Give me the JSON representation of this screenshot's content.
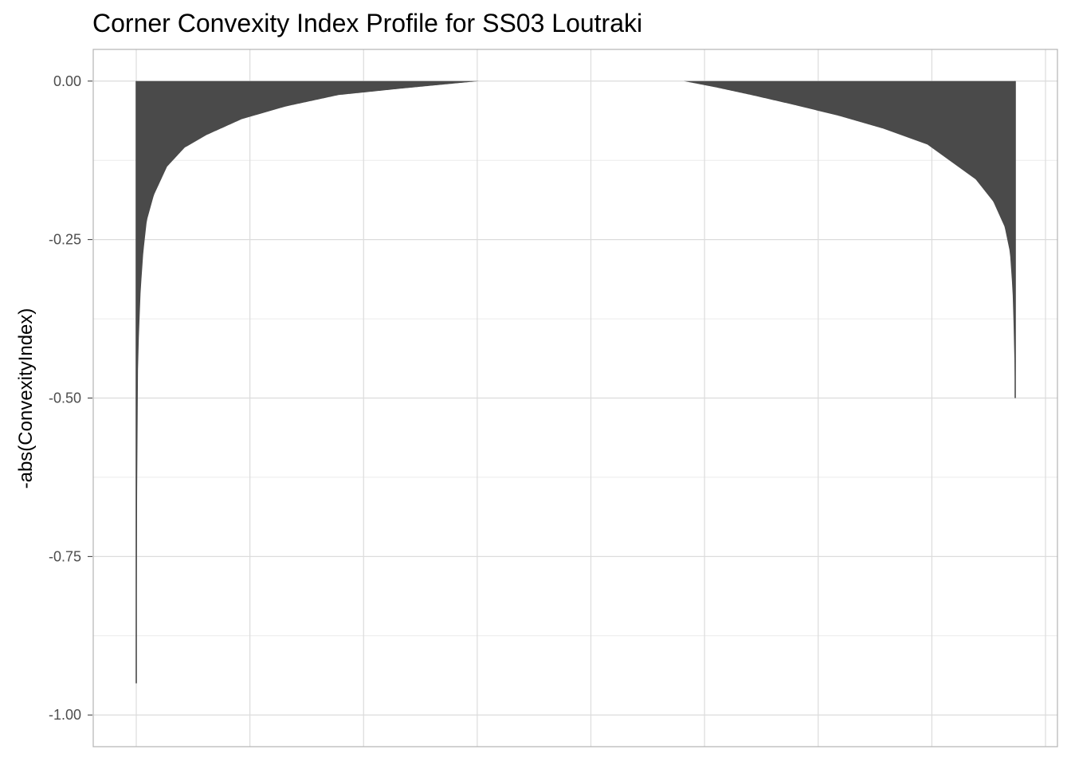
{
  "chart_data": {
    "type": "area",
    "title": "Corner Convexity Index Profile for SS03 Loutraki",
    "xlabel": "",
    "ylabel": "-abs(ConvexityIndex)",
    "ylim": [
      -1.05,
      0.05
    ],
    "y_ticks": [
      0.0,
      -0.25,
      -0.5,
      -0.75,
      -1.0
    ],
    "y_tick_labels": [
      "0.00",
      "-0.25",
      "-0.50",
      "-0.75",
      "-1.00"
    ],
    "x_tick_labels_shown": false,
    "grid": true,
    "legend": "none",
    "colors": {
      "bars": "#4a4a4a",
      "grid_major": "#dcdcdc",
      "grid_minor": "#ebebeb",
      "border": "#b3b3b3"
    },
    "x_domain": [
      0,
      1
    ],
    "series": [
      {
        "segment": "left-decreasing",
        "x": [
          0.0,
          0.0015,
          0.003,
          0.005,
          0.008,
          0.012,
          0.02,
          0.035,
          0.055,
          0.08,
          0.12,
          0.17,
          0.23,
          0.3,
          0.36,
          0.39
        ],
        "y": [
          -0.95,
          -0.48,
          -0.4,
          -0.33,
          -0.27,
          -0.22,
          -0.18,
          -0.135,
          -0.105,
          -0.085,
          -0.06,
          -0.04,
          -0.022,
          -0.012,
          -0.004,
          0.0
        ]
      },
      {
        "segment": "right-increasing",
        "x": [
          0.623,
          0.66,
          0.7,
          0.75,
          0.8,
          0.85,
          0.9,
          0.93,
          0.955,
          0.975,
          0.988,
          0.994,
          0.997,
          0.9985,
          1.0
        ],
        "y": [
          0.0,
          -0.01,
          -0.022,
          -0.038,
          -0.055,
          -0.075,
          -0.1,
          -0.13,
          -0.155,
          -0.19,
          -0.23,
          -0.27,
          -0.33,
          -0.4,
          -0.5
        ]
      }
    ]
  }
}
